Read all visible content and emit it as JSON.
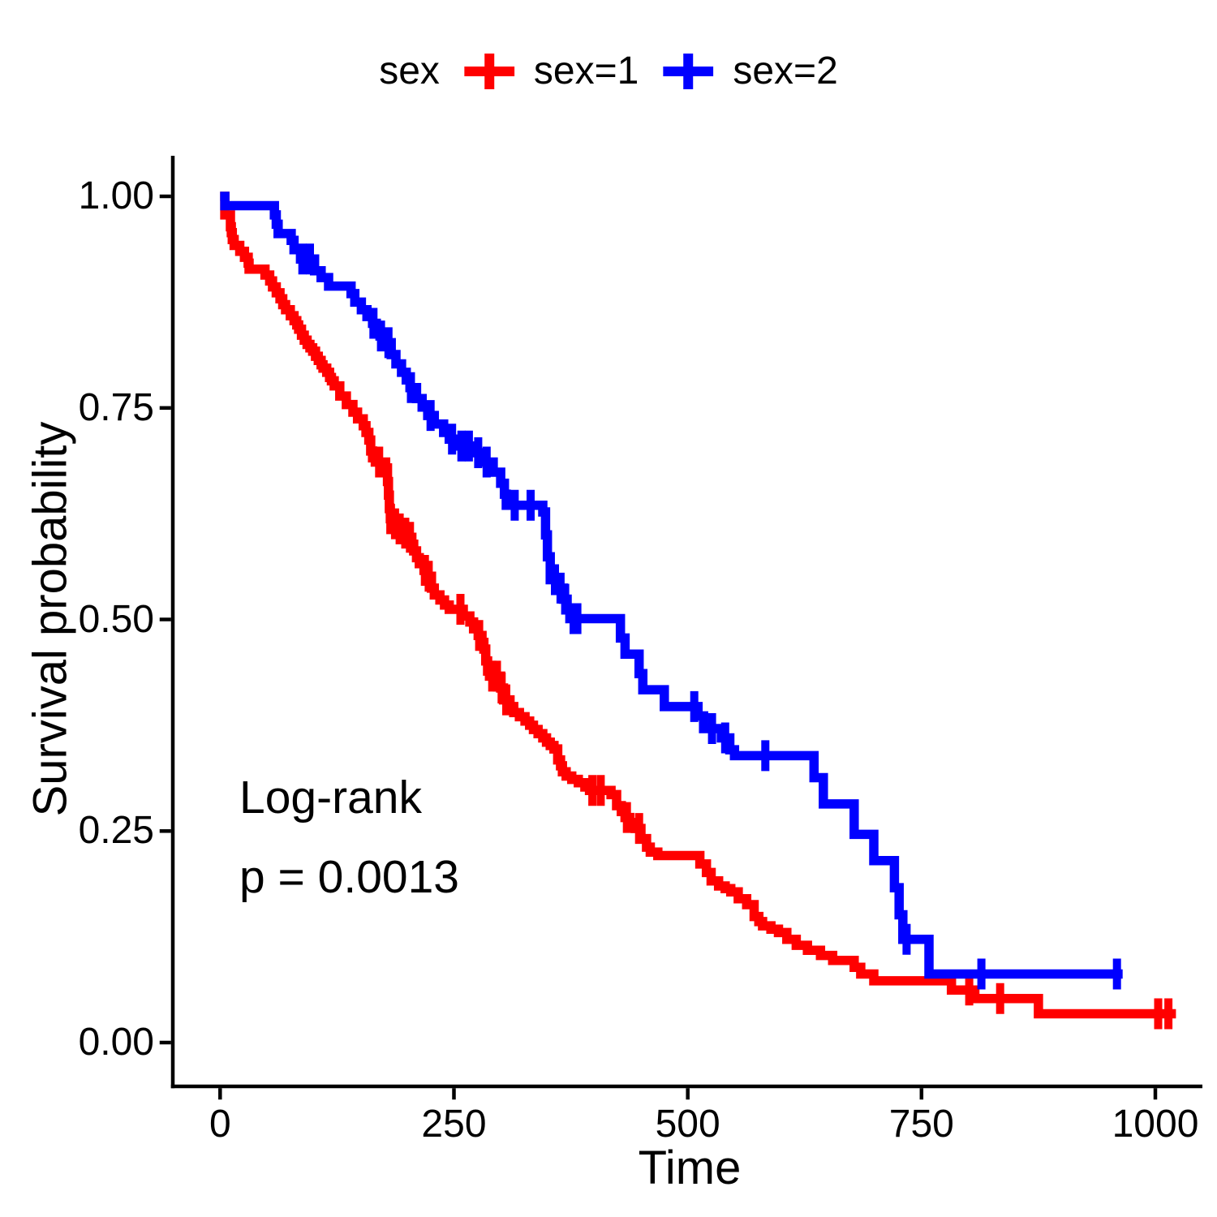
{
  "legend": {
    "title": "sex",
    "items": [
      {
        "label": "sex=1",
        "color": "#FF0000"
      },
      {
        "label": "sex=2",
        "color": "#0000FF"
      }
    ]
  },
  "annotation": {
    "line1": "Log-rank",
    "line2": "p = 0.0013"
  },
  "axes": {
    "x": {
      "title": "Time",
      "ticks": [
        {
          "label": "0",
          "value": 0
        },
        {
          "label": "250",
          "value": 250
        },
        {
          "label": "500",
          "value": 500
        },
        {
          "label": "750",
          "value": 750
        },
        {
          "label": "1000",
          "value": 1000
        }
      ]
    },
    "y": {
      "title": "Survival probability",
      "ticks": [
        {
          "label": "0.00",
          "value": 0
        },
        {
          "label": "0.25",
          "value": 0.25
        },
        {
          "label": "0.50",
          "value": 0.5
        },
        {
          "label": "0.75",
          "value": 0.75
        },
        {
          "label": "1.00",
          "value": 1
        }
      ]
    }
  },
  "chart_data": {
    "type": "line",
    "subtype": "kaplan-meier-step-curves",
    "title": "",
    "xlabel": "Time",
    "ylabel": "Survival probability",
    "xlim": [
      0,
      1040
    ],
    "ylim": [
      0,
      1
    ],
    "grid": false,
    "legend_position": "top",
    "legend_title": "sex",
    "annotation": "Log-rank p = 0.0013",
    "series": [
      {
        "name": "sex=1",
        "color": "#FF0000",
        "start": [
          0,
          1.0
        ],
        "end_time": 1022,
        "steps": [
          [
            5,
            0.978
          ],
          [
            11,
            0.964
          ],
          [
            12,
            0.957
          ],
          [
            13,
            0.949
          ],
          [
            15,
            0.942
          ],
          [
            21,
            0.935
          ],
          [
            26,
            0.928
          ],
          [
            30,
            0.921
          ],
          [
            31,
            0.914
          ],
          [
            48,
            0.907
          ],
          [
            53,
            0.9
          ],
          [
            56,
            0.893
          ],
          [
            60,
            0.886
          ],
          [
            64,
            0.879
          ],
          [
            67,
            0.872
          ],
          [
            70,
            0.866
          ],
          [
            75,
            0.859
          ],
          [
            79,
            0.853
          ],
          [
            82,
            0.848
          ],
          [
            84,
            0.843
          ],
          [
            87,
            0.836
          ],
          [
            90,
            0.83
          ],
          [
            93,
            0.825
          ],
          [
            96,
            0.821
          ],
          [
            99,
            0.817
          ],
          [
            102,
            0.811
          ],
          [
            105,
            0.806
          ],
          [
            108,
            0.801
          ],
          [
            110,
            0.797
          ],
          [
            114,
            0.792
          ],
          [
            117,
            0.786
          ],
          [
            119,
            0.782
          ],
          [
            122,
            0.776
          ],
          [
            128,
            0.764
          ],
          [
            135,
            0.754
          ],
          [
            142,
            0.745
          ],
          [
            147,
            0.737
          ],
          [
            153,
            0.729
          ],
          [
            156,
            0.721
          ],
          [
            159,
            0.712
          ],
          [
            161,
            0.699
          ],
          [
            163,
            0.691
          ],
          [
            166,
            0.686
          ],
          [
            177,
            0.679
          ],
          [
            179,
            0.663
          ],
          [
            180,
            0.647
          ],
          [
            181,
            0.631
          ],
          [
            182,
            0.619
          ],
          [
            186,
            0.613
          ],
          [
            190,
            0.607
          ],
          [
            194,
            0.602
          ],
          [
            202,
            0.597
          ],
          [
            205,
            0.589
          ],
          [
            207,
            0.581
          ],
          [
            210,
            0.573
          ],
          [
            213,
            0.566
          ],
          [
            218,
            0.558
          ],
          [
            222,
            0.551
          ],
          [
            226,
            0.537
          ],
          [
            229,
            0.529
          ],
          [
            235,
            0.523
          ],
          [
            240,
            0.517
          ],
          [
            245,
            0.512
          ],
          [
            260,
            0.504
          ],
          [
            267,
            0.497
          ],
          [
            271,
            0.489
          ],
          [
            276,
            0.481
          ],
          [
            280,
            0.473
          ],
          [
            282,
            0.465
          ],
          [
            284,
            0.451
          ],
          [
            286,
            0.439
          ],
          [
            288,
            0.433
          ],
          [
            300,
            0.419
          ],
          [
            303,
            0.405
          ],
          [
            310,
            0.397
          ],
          [
            314,
            0.39
          ],
          [
            320,
            0.385
          ],
          [
            326,
            0.38
          ],
          [
            331,
            0.375
          ],
          [
            335,
            0.37
          ],
          [
            340,
            0.365
          ],
          [
            345,
            0.36
          ],
          [
            349,
            0.355
          ],
          [
            353,
            0.351
          ],
          [
            357,
            0.347
          ],
          [
            361,
            0.334
          ],
          [
            364,
            0.327
          ],
          [
            366,
            0.32
          ],
          [
            370,
            0.315
          ],
          [
            376,
            0.311
          ],
          [
            383,
            0.307
          ],
          [
            390,
            0.302
          ],
          [
            395,
            0.298
          ],
          [
            418,
            0.293
          ],
          [
            424,
            0.28
          ],
          [
            429,
            0.273
          ],
          [
            433,
            0.266
          ],
          [
            438,
            0.26
          ],
          [
            444,
            0.253
          ],
          [
            450,
            0.241
          ],
          [
            456,
            0.231
          ],
          [
            460,
            0.225
          ],
          [
            468,
            0.221
          ],
          [
            513,
            0.211
          ],
          [
            520,
            0.201
          ],
          [
            525,
            0.191
          ],
          [
            533,
            0.185
          ],
          [
            540,
            0.182
          ],
          [
            546,
            0.178
          ],
          [
            554,
            0.17
          ],
          [
            563,
            0.163
          ],
          [
            571,
            0.149
          ],
          [
            576,
            0.143
          ],
          [
            580,
            0.138
          ],
          [
            589,
            0.134
          ],
          [
            597,
            0.13
          ],
          [
            606,
            0.122
          ],
          [
            616,
            0.115
          ],
          [
            628,
            0.109
          ],
          [
            642,
            0.103
          ],
          [
            655,
            0.097
          ],
          [
            678,
            0.089
          ],
          [
            685,
            0.081
          ],
          [
            699,
            0.073
          ],
          [
            782,
            0.062
          ],
          [
            807,
            0.052
          ],
          [
            875,
            0.034
          ]
        ],
        "censor_times": [
          170,
          182,
          187,
          192,
          198,
          203,
          219,
          223,
          257,
          277,
          291,
          296,
          301,
          306,
          398,
          407,
          435,
          448,
          801,
          834,
          1003,
          1014
        ]
      },
      {
        "name": "sex=2",
        "color": "#0000FF",
        "start": [
          0,
          1.0
        ],
        "end_time": 965,
        "steps": [
          [
            5,
            0.989
          ],
          [
            58,
            0.978
          ],
          [
            60,
            0.967
          ],
          [
            62,
            0.956
          ],
          [
            76,
            0.948
          ],
          [
            79,
            0.937
          ],
          [
            86,
            0.926
          ],
          [
            101,
            0.912
          ],
          [
            108,
            0.904
          ],
          [
            116,
            0.894
          ],
          [
            140,
            0.885
          ],
          [
            144,
            0.875
          ],
          [
            151,
            0.866
          ],
          [
            157,
            0.858
          ],
          [
            163,
            0.85
          ],
          [
            167,
            0.843
          ],
          [
            171,
            0.835
          ],
          [
            177,
            0.827
          ],
          [
            183,
            0.813
          ],
          [
            188,
            0.802
          ],
          [
            194,
            0.792
          ],
          [
            199,
            0.783
          ],
          [
            203,
            0.774
          ],
          [
            210,
            0.761
          ],
          [
            216,
            0.751
          ],
          [
            222,
            0.741
          ],
          [
            229,
            0.731
          ],
          [
            239,
            0.721
          ],
          [
            245,
            0.713
          ],
          [
            252,
            0.705
          ],
          [
            268,
            0.697
          ],
          [
            284,
            0.686
          ],
          [
            292,
            0.674
          ],
          [
            300,
            0.661
          ],
          [
            304,
            0.648
          ],
          [
            306,
            0.635
          ],
          [
            345,
            0.627
          ],
          [
            348,
            0.6
          ],
          [
            350,
            0.574
          ],
          [
            353,
            0.547
          ],
          [
            361,
            0.537
          ],
          [
            367,
            0.524
          ],
          [
            371,
            0.513
          ],
          [
            374,
            0.501
          ],
          [
            428,
            0.478
          ],
          [
            433,
            0.459
          ],
          [
            448,
            0.436
          ],
          [
            452,
            0.417
          ],
          [
            475,
            0.397
          ],
          [
            511,
            0.386
          ],
          [
            517,
            0.371
          ],
          [
            536,
            0.36
          ],
          [
            545,
            0.346
          ],
          [
            550,
            0.339
          ],
          [
            635,
            0.313
          ],
          [
            645,
            0.282
          ],
          [
            678,
            0.246
          ],
          [
            699,
            0.215
          ],
          [
            721,
            0.183
          ],
          [
            726,
            0.151
          ],
          [
            730,
            0.122
          ],
          [
            758,
            0.081
          ]
        ],
        "censor_times": [
          88,
          96,
          164,
          172,
          180,
          204,
          225,
          248,
          258,
          266,
          276,
          285,
          315,
          332,
          358,
          364,
          369,
          378,
          382,
          507,
          526,
          540,
          583,
          734,
          814,
          959
        ]
      }
    ]
  }
}
